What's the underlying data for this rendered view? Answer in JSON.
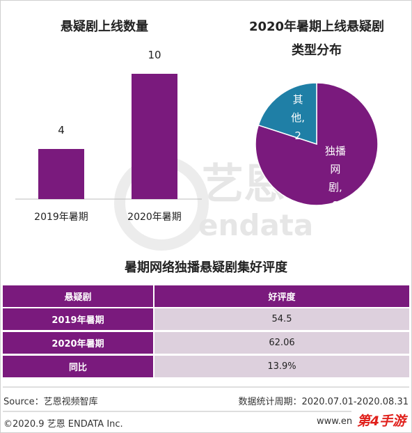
{
  "chart_data": [
    {
      "type": "bar",
      "title": "悬疑剧上线数量",
      "categories": [
        "2019年暑期",
        "2020年暑期"
      ],
      "values": [
        4,
        10
      ],
      "color": "#7a1a7d"
    },
    {
      "type": "pie",
      "title": "2020年暑期上线悬疑剧类型分布",
      "categories": [
        "独播网剧,",
        "其他,"
      ],
      "values": [
        8,
        2
      ],
      "colors": [
        "#7a1a7d",
        "#1f7fa6"
      ]
    }
  ],
  "watermark": {
    "name": "艺恩",
    "brand": "endata"
  },
  "table": {
    "title": "暑期网络独播悬疑剧集好评度",
    "header": [
      "悬疑剧",
      "好评度"
    ],
    "rows": [
      [
        "2019年暑期",
        "54.5"
      ],
      [
        "2020年暑期",
        "62.06"
      ],
      [
        "同比",
        "13.9%"
      ]
    ]
  },
  "footer": {
    "source": "Source：艺恩视频智库",
    "period": "数据统计周期：2020.07.01-2020.08.31",
    "copyright": "©2020.9 艺恩 ENDATA Inc.",
    "website": "www.endata.com.cn",
    "logo": "第4手游"
  }
}
